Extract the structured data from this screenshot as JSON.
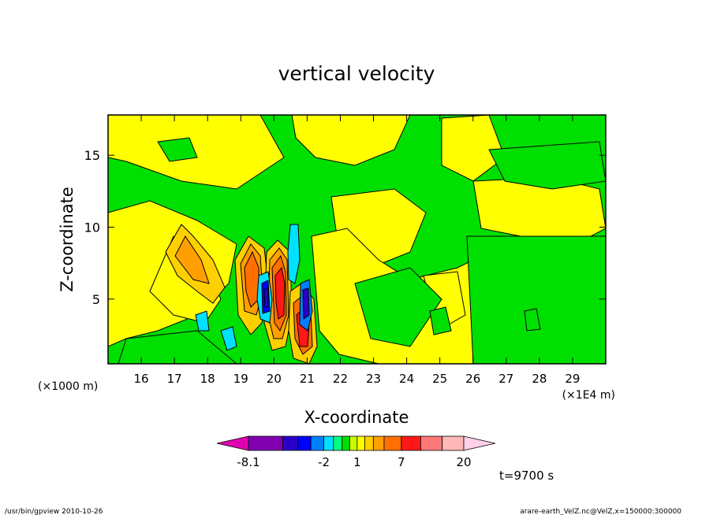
{
  "chart_data": {
    "type": "heatmap",
    "title": "vertical velocity",
    "xlabel": "X-coordinate",
    "ylabel": "Z-coordinate",
    "x_unit_left": "(×1000 m)",
    "x_unit_right": "(×1E4 m)",
    "x_ticks": [
      "16",
      "17",
      "18",
      "19",
      "20",
      "21",
      "22",
      "23",
      "24",
      "25",
      "26",
      "27",
      "28",
      "29"
    ],
    "x_tick_values": [
      16,
      17,
      18,
      19,
      20,
      21,
      22,
      23,
      24,
      25,
      26,
      27,
      28,
      29
    ],
    "xlim": [
      15,
      30
    ],
    "y_ticks": [
      "5",
      "10",
      "15"
    ],
    "y_tick_values": [
      5,
      10,
      15
    ],
    "ylim": [
      0.5,
      17.8
    ],
    "colorbar": {
      "labels": [
        "-8.1",
        "-2",
        "1",
        "7",
        "20"
      ],
      "label_values": [
        -8.1,
        -2,
        1,
        7,
        20
      ],
      "levels": [
        -8.1,
        -6,
        -4,
        -3,
        -2,
        -1,
        0,
        0.5,
        1,
        2,
        3,
        5,
        7,
        10,
        14,
        20
      ],
      "colors": [
        "#8000b0",
        "#2a00c8",
        "#0000ff",
        "#0080ff",
        "#00e0ff",
        "#00ff80",
        "#00e000",
        "#c8ff00",
        "#ffff00",
        "#ffd000",
        "#ffa000",
        "#ff7000",
        "#ff1818",
        "#ff7878",
        "#ffb8b8"
      ],
      "under_color": "#e000b0",
      "over_color": "#ffd0e8"
    },
    "features": [
      {
        "x": 20.0,
        "z": 4.8,
        "value": 10
      },
      {
        "x": 19.6,
        "z": 6.3,
        "value": 8
      },
      {
        "x": 21.0,
        "z": 3.2,
        "value": 9
      },
      {
        "x": 20.6,
        "z": 6.0,
        "value": -4
      },
      {
        "x": 21.3,
        "z": 4.3,
        "value": -5
      },
      {
        "x": 17.8,
        "z": 7.4,
        "value": 2
      }
    ],
    "background": {
      "positive": "#ffff00",
      "negative": "#00e000",
      "contour": "#000000"
    }
  },
  "annotations": {
    "time": "t=9700 s",
    "footer_left": "/usr/bin/gpview   2010-10-26",
    "footer_right": "arare-earth_VelZ.nc@VelZ,x=150000:300000"
  }
}
